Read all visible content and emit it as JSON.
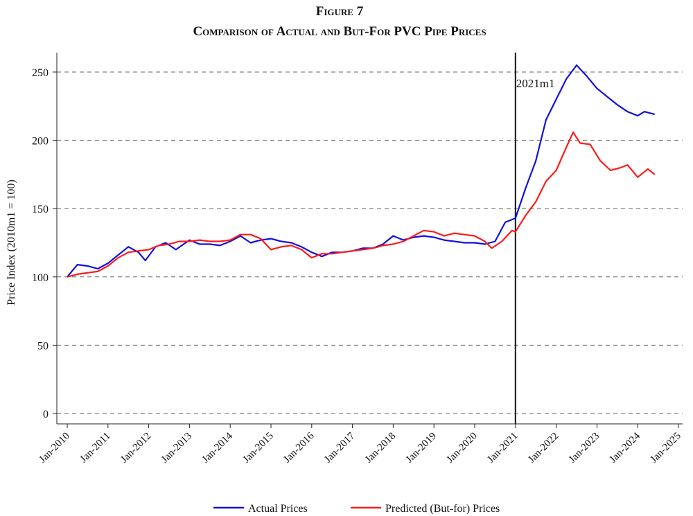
{
  "chart_data": {
    "type": "line",
    "title": "Figure 7",
    "subtitle": "Comparison of Actual and But-For PVC Pipe Prices",
    "xlabel": "",
    "ylabel": "Price Index (2010m1 = 100)",
    "ylim": [
      0,
      250
    ],
    "yticks": [
      0,
      50,
      100,
      150,
      200,
      250
    ],
    "xticks": [
      "Jan-2010",
      "Jan-2011",
      "Jan-2012",
      "Jan-2013",
      "Jan-2014",
      "Jan-2015",
      "Jan-2016",
      "Jan-2017",
      "Jan-2018",
      "Jan-2019",
      "Jan-2020",
      "Jan-2021",
      "Jan-2022",
      "Jan-2023",
      "Jan-2024",
      "Jan-2025"
    ],
    "grid": "horizontal dashed",
    "legend": "bottom",
    "annotation": {
      "label": "2021m1",
      "x": "2021-01"
    },
    "series": [
      {
        "name": "Actual Prices",
        "color": "#1010e0",
        "points": [
          [
            "2010-01",
            100
          ],
          [
            "2010-04",
            109
          ],
          [
            "2010-07",
            108
          ],
          [
            "2010-10",
            106
          ],
          [
            "2011-01",
            110
          ],
          [
            "2011-04",
            116
          ],
          [
            "2011-07",
            122
          ],
          [
            "2011-10",
            118
          ],
          [
            "2011-12",
            112
          ],
          [
            "2012-03",
            122
          ],
          [
            "2012-06",
            125
          ],
          [
            "2012-09",
            120
          ],
          [
            "2013-01",
            127
          ],
          [
            "2013-04",
            124
          ],
          [
            "2013-07",
            124
          ],
          [
            "2013-10",
            123
          ],
          [
            "2014-01",
            126
          ],
          [
            "2014-04",
            130
          ],
          [
            "2014-07",
            125
          ],
          [
            "2014-10",
            127
          ],
          [
            "2015-01",
            128
          ],
          [
            "2015-04",
            126
          ],
          [
            "2015-07",
            125
          ],
          [
            "2015-10",
            122
          ],
          [
            "2016-01",
            118
          ],
          [
            "2016-04",
            115
          ],
          [
            "2016-07",
            118
          ],
          [
            "2016-10",
            118
          ],
          [
            "2017-01",
            119
          ],
          [
            "2017-04",
            121
          ],
          [
            "2017-07",
            121
          ],
          [
            "2017-10",
            124
          ],
          [
            "2018-01",
            130
          ],
          [
            "2018-04",
            127
          ],
          [
            "2018-07",
            129
          ],
          [
            "2018-10",
            130
          ],
          [
            "2019-01",
            129
          ],
          [
            "2019-04",
            127
          ],
          [
            "2019-07",
            126
          ],
          [
            "2019-10",
            125
          ],
          [
            "2020-01",
            125
          ],
          [
            "2020-04",
            124
          ],
          [
            "2020-07",
            126
          ],
          [
            "2020-10",
            140
          ],
          [
            "2021-01",
            143
          ],
          [
            "2021-04",
            165
          ],
          [
            "2021-07",
            185
          ],
          [
            "2021-10",
            215
          ],
          [
            "2022-01",
            230
          ],
          [
            "2022-04",
            245
          ],
          [
            "2022-07",
            255
          ],
          [
            "2022-10",
            247
          ],
          [
            "2023-01",
            238
          ],
          [
            "2023-04",
            232
          ],
          [
            "2023-07",
            226
          ],
          [
            "2023-10",
            221
          ],
          [
            "2024-01",
            218
          ],
          [
            "2024-03",
            221
          ],
          [
            "2024-06",
            219
          ]
        ]
      },
      {
        "name": "Predicted (But-for) Prices",
        "color": "#ff1a1a",
        "points": [
          [
            "2010-01",
            100
          ],
          [
            "2010-04",
            102
          ],
          [
            "2010-07",
            103
          ],
          [
            "2010-10",
            104
          ],
          [
            "2011-01",
            108
          ],
          [
            "2011-04",
            114
          ],
          [
            "2011-07",
            118
          ],
          [
            "2011-10",
            119
          ],
          [
            "2012-01",
            120
          ],
          [
            "2012-04",
            123
          ],
          [
            "2012-07",
            124
          ],
          [
            "2012-10",
            126
          ],
          [
            "2013-01",
            126
          ],
          [
            "2013-04",
            127
          ],
          [
            "2013-07",
            126
          ],
          [
            "2013-10",
            126
          ],
          [
            "2014-01",
            127
          ],
          [
            "2014-04",
            131
          ],
          [
            "2014-07",
            131
          ],
          [
            "2014-10",
            128
          ],
          [
            "2015-01",
            120
          ],
          [
            "2015-04",
            122
          ],
          [
            "2015-07",
            123
          ],
          [
            "2015-10",
            120
          ],
          [
            "2016-01",
            114
          ],
          [
            "2016-04",
            117
          ],
          [
            "2016-07",
            117
          ],
          [
            "2016-10",
            118
          ],
          [
            "2017-01",
            119
          ],
          [
            "2017-04",
            120
          ],
          [
            "2017-07",
            121
          ],
          [
            "2017-10",
            123
          ],
          [
            "2018-01",
            124
          ],
          [
            "2018-04",
            126
          ],
          [
            "2018-07",
            130
          ],
          [
            "2018-10",
            134
          ],
          [
            "2019-01",
            133
          ],
          [
            "2019-04",
            130
          ],
          [
            "2019-07",
            132
          ],
          [
            "2019-10",
            131
          ],
          [
            "2020-01",
            130
          ],
          [
            "2020-04",
            126
          ],
          [
            "2020-06",
            121
          ],
          [
            "2020-09",
            126
          ],
          [
            "2020-12",
            134
          ],
          [
            "2021-01",
            133
          ],
          [
            "2021-04",
            145
          ],
          [
            "2021-07",
            155
          ],
          [
            "2021-10",
            170
          ],
          [
            "2022-01",
            178
          ],
          [
            "2022-04",
            195
          ],
          [
            "2022-06",
            206
          ],
          [
            "2022-08",
            198
          ],
          [
            "2022-11",
            197
          ],
          [
            "2023-02",
            185
          ],
          [
            "2023-05",
            178
          ],
          [
            "2023-08",
            180
          ],
          [
            "2023-10",
            182
          ],
          [
            "2024-01",
            173
          ],
          [
            "2024-03",
            177
          ],
          [
            "2024-04",
            179
          ],
          [
            "2024-06",
            175
          ]
        ]
      }
    ]
  }
}
